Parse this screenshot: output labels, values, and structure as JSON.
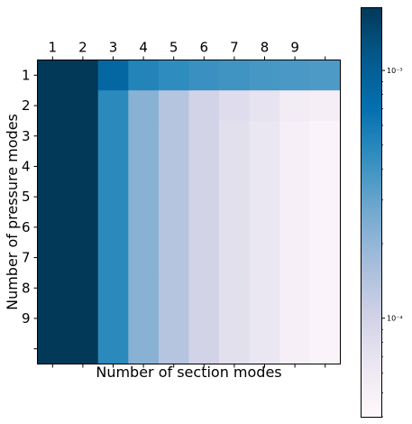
{
  "chart_data": {
    "type": "heatmap",
    "title": "",
    "xlabel": "Number of section modes",
    "ylabel": "Number of pressure modes",
    "x_tick_labels": [
      "1",
      "2",
      "3",
      "4",
      "5",
      "6",
      "7",
      "8",
      "9",
      ""
    ],
    "y_tick_labels": [
      "1",
      "2",
      "3",
      "4",
      "5",
      "6",
      "7",
      "8",
      "9",
      ""
    ],
    "x_tick_position": "top",
    "colormap": "PuBu",
    "color_scale": "log",
    "colorbar_range": [
      4e-05,
      0.0018
    ],
    "colorbar_ticks": [
      {
        "value": 0.001,
        "label": "10⁻³"
      },
      {
        "value": 0.0001,
        "label": "10⁻⁴"
      }
    ],
    "grid": false,
    "values": [
      [
        0.0018,
        0.0018,
        0.00085,
        0.00052,
        0.00046,
        0.00042,
        0.0004,
        0.00038,
        0.00037,
        0.00036
      ],
      [
        0.0018,
        0.0018,
        0.00048,
        0.00022,
        0.00014,
        0.0001,
        8e-05,
        7e-05,
        5.5e-05,
        5.2e-05
      ],
      [
        0.0018,
        0.0018,
        0.00048,
        0.00022,
        0.00014,
        0.0001,
        7.5e-05,
        6.5e-05,
        5e-05,
        4.5e-05
      ],
      [
        0.0018,
        0.0018,
        0.00048,
        0.00022,
        0.00014,
        0.0001,
        7.5e-05,
        6.5e-05,
        5e-05,
        4.5e-05
      ],
      [
        0.0018,
        0.0018,
        0.00048,
        0.00022,
        0.00014,
        0.0001,
        7.5e-05,
        6.5e-05,
        5e-05,
        4.5e-05
      ],
      [
        0.0018,
        0.0018,
        0.00048,
        0.00022,
        0.00014,
        0.0001,
        7.5e-05,
        6.5e-05,
        5e-05,
        4.5e-05
      ],
      [
        0.0018,
        0.0018,
        0.00048,
        0.00022,
        0.00014,
        0.0001,
        7.5e-05,
        6.5e-05,
        5e-05,
        4.5e-05
      ],
      [
        0.0018,
        0.0018,
        0.00048,
        0.00022,
        0.00014,
        0.0001,
        7.5e-05,
        6.5e-05,
        5e-05,
        4.5e-05
      ],
      [
        0.0018,
        0.0018,
        0.00048,
        0.00022,
        0.00014,
        0.0001,
        7.5e-05,
        6.5e-05,
        5e-05,
        4.5e-05
      ],
      [
        0.0018,
        0.0018,
        0.00048,
        0.00022,
        0.00014,
        0.0001,
        7.5e-05,
        6.5e-05,
        5e-05,
        4.5e-05
      ]
    ]
  }
}
